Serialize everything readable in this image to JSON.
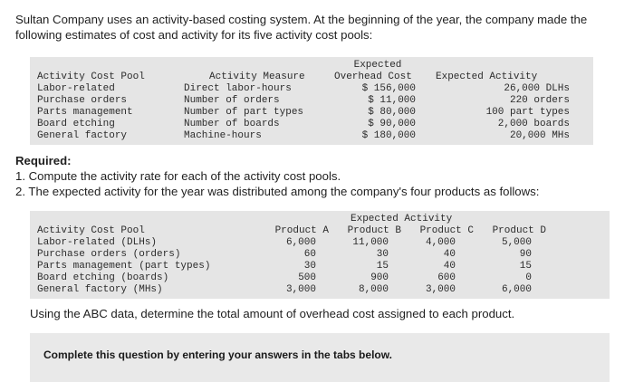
{
  "intro": "Sultan Company uses an activity-based costing system. At the beginning of the year, the company made the following estimates of cost and activity for its five activity cost pools:",
  "table1": {
    "headers": {
      "pool": "Activity Cost Pool",
      "measure": "Activity Measure",
      "cost_line1": "Expected",
      "cost_line2": "Overhead Cost",
      "activity": "Expected Activity"
    },
    "rows": [
      {
        "pool": "Labor-related",
        "measure": "Direct labor-hours",
        "cost": "$ 156,000",
        "activity": "26,000 DLHs"
      },
      {
        "pool": "Purchase orders",
        "measure": "Number of orders",
        "cost": "$ 11,000",
        "activity": "220 orders"
      },
      {
        "pool": "Parts management",
        "measure": "Number of part types",
        "cost": "$ 80,000",
        "activity": "100 part types"
      },
      {
        "pool": "Board etching",
        "measure": "Number of boards",
        "cost": "$ 90,000",
        "activity": "2,000 boards"
      },
      {
        "pool": "General factory",
        "measure": "Machine-hours",
        "cost": "$ 180,000",
        "activity": "20,000 MHs"
      }
    ]
  },
  "required": {
    "heading": "Required:",
    "item1": "1. Compute the activity rate for each of the activity cost pools.",
    "item2": "2. The expected activity for the year was distributed among the company's four products as follows:"
  },
  "table2": {
    "group_header": "Expected Activity",
    "headers": {
      "pool": "Activity Cost Pool",
      "a": "Product A",
      "b": "Product B",
      "c": "Product C",
      "d": "Product D"
    },
    "rows": [
      {
        "pool": "Labor-related (DLHs)",
        "a": "6,000",
        "b": "11,000",
        "c": "4,000",
        "d": "5,000"
      },
      {
        "pool": "Purchase orders (orders)",
        "a": "60",
        "b": "30",
        "c": "40",
        "d": "90"
      },
      {
        "pool": "Parts management (part types)",
        "a": "30",
        "b": "15",
        "c": "40",
        "d": "15"
      },
      {
        "pool": "Board etching (boards)",
        "a": "500",
        "b": "900",
        "c": "600",
        "d": "0"
      },
      {
        "pool": "General factory (MHs)",
        "a": "3,000",
        "b": "8,000",
        "c": "3,000",
        "d": "6,000"
      }
    ]
  },
  "abc_text": "Using the ABC data, determine the total amount of overhead cost assigned to each product.",
  "instruction": "Complete this question by entering your answers in the tabs below."
}
